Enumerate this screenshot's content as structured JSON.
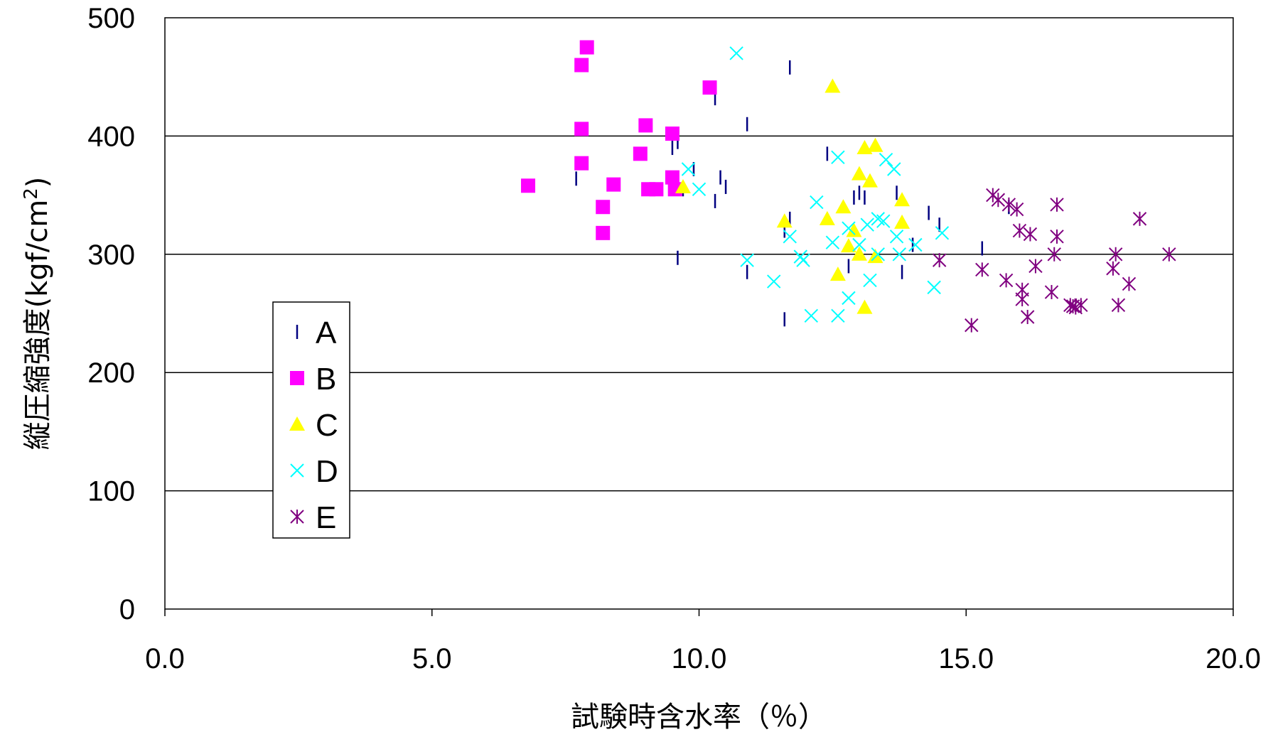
{
  "chart_data": {
    "type": "scatter",
    "title": "",
    "xlabel": "試験時含水率（％）",
    "ylabel_main": "縦圧縮強度(kgf/cm",
    "ylabel_sup": "2",
    "ylabel_end": ")",
    "xlim": [
      0,
      20
    ],
    "ylim": [
      0,
      500
    ],
    "xticks": [
      "0.0",
      "5.0",
      "10.0",
      "15.0",
      "20.0"
    ],
    "yticks": [
      "0",
      "100",
      "200",
      "300",
      "400",
      "500"
    ],
    "grid": "horizontal",
    "legend_position": "left",
    "series": [
      {
        "name": "A",
        "marker": "dash",
        "color": "#000080",
        "points": [
          [
            7.7,
            364
          ],
          [
            9.5,
            390
          ],
          [
            9.6,
            395
          ],
          [
            9.7,
            355
          ],
          [
            9.6,
            297
          ],
          [
            9.9,
            372
          ],
          [
            10.3,
            345
          ],
          [
            10.3,
            432
          ],
          [
            10.4,
            365
          ],
          [
            10.5,
            357
          ],
          [
            10.9,
            410
          ],
          [
            10.9,
            285
          ],
          [
            11.7,
            458
          ],
          [
            11.7,
            330
          ],
          [
            11.6,
            320
          ],
          [
            11.6,
            245
          ],
          [
            12.4,
            385
          ],
          [
            12.8,
            290
          ],
          [
            12.9,
            348
          ],
          [
            13.0,
            352
          ],
          [
            13.1,
            348
          ],
          [
            13.7,
            352
          ],
          [
            13.8,
            285
          ],
          [
            14.0,
            308
          ],
          [
            14.3,
            335
          ],
          [
            14.5,
            325
          ],
          [
            15.3,
            305
          ],
          [
            15.8,
            340
          ]
        ]
      },
      {
        "name": "B",
        "marker": "square",
        "color": "#FF00FF",
        "points": [
          [
            6.8,
            358
          ],
          [
            7.8,
            460
          ],
          [
            7.9,
            475
          ],
          [
            7.8,
            406
          ],
          [
            7.8,
            377
          ],
          [
            8.2,
            340
          ],
          [
            8.2,
            318
          ],
          [
            8.4,
            359
          ],
          [
            8.9,
            385
          ],
          [
            9.0,
            409
          ],
          [
            9.05,
            355
          ],
          [
            9.2,
            355
          ],
          [
            9.5,
            402
          ],
          [
            9.5,
            365
          ],
          [
            9.55,
            355
          ],
          [
            10.2,
            441
          ]
        ]
      },
      {
        "name": "C",
        "marker": "triangle",
        "color": "#FFFF00",
        "points": [
          [
            9.7,
            357
          ],
          [
            11.6,
            328
          ],
          [
            12.4,
            330
          ],
          [
            12.5,
            442
          ],
          [
            12.6,
            283
          ],
          [
            12.7,
            340
          ],
          [
            12.8,
            307
          ],
          [
            12.9,
            320
          ],
          [
            13.0,
            300
          ],
          [
            13.0,
            368
          ],
          [
            13.1,
            255
          ],
          [
            13.1,
            390
          ],
          [
            13.2,
            362
          ],
          [
            13.3,
            392
          ],
          [
            13.3,
            298
          ],
          [
            13.8,
            346
          ],
          [
            13.8,
            327
          ]
        ]
      },
      {
        "name": "D",
        "marker": "x",
        "color": "#00FFFF",
        "points": [
          [
            9.8,
            372
          ],
          [
            10.0,
            355
          ],
          [
            10.7,
            470
          ],
          [
            10.9,
            295
          ],
          [
            11.4,
            277
          ],
          [
            11.7,
            315
          ],
          [
            11.9,
            298
          ],
          [
            11.95,
            295
          ],
          [
            12.1,
            248
          ],
          [
            12.2,
            344
          ],
          [
            12.5,
            310
          ],
          [
            12.6,
            248
          ],
          [
            12.6,
            382
          ],
          [
            12.8,
            263
          ],
          [
            12.8,
            322
          ],
          [
            13.0,
            308
          ],
          [
            13.15,
            325
          ],
          [
            13.2,
            278
          ],
          [
            13.35,
            300
          ],
          [
            13.35,
            330
          ],
          [
            13.45,
            328
          ],
          [
            13.5,
            380
          ],
          [
            13.65,
            372
          ],
          [
            13.7,
            315
          ],
          [
            13.75,
            300
          ],
          [
            14.05,
            308
          ],
          [
            14.4,
            272
          ],
          [
            14.55,
            318
          ]
        ]
      },
      {
        "name": "E",
        "marker": "star",
        "color": "#800080",
        "points": [
          [
            14.5,
            295
          ],
          [
            15.1,
            240
          ],
          [
            15.3,
            287
          ],
          [
            15.5,
            350
          ],
          [
            15.6,
            346
          ],
          [
            15.75,
            278
          ],
          [
            15.8,
            342
          ],
          [
            15.95,
            338
          ],
          [
            16.0,
            320
          ],
          [
            16.05,
            270
          ],
          [
            16.05,
            262
          ],
          [
            16.15,
            247
          ],
          [
            16.2,
            317
          ],
          [
            16.3,
            290
          ],
          [
            16.6,
            268
          ],
          [
            16.65,
            300
          ],
          [
            16.7,
            315
          ],
          [
            16.7,
            342
          ],
          [
            16.95,
            257
          ],
          [
            17.0,
            256
          ],
          [
            17.05,
            255
          ],
          [
            17.15,
            257
          ],
          [
            17.75,
            288
          ],
          [
            17.8,
            300
          ],
          [
            17.85,
            257
          ],
          [
            18.05,
            275
          ],
          [
            18.25,
            330
          ],
          [
            18.8,
            300
          ]
        ]
      }
    ]
  }
}
